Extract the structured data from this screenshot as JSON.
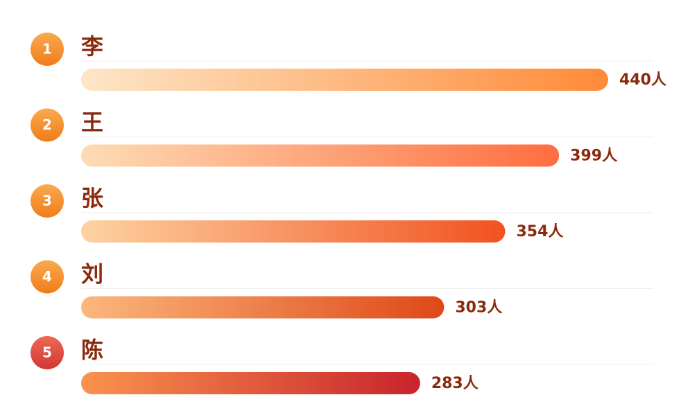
{
  "chart_data": {
    "type": "bar",
    "orientation": "horizontal",
    "ranks": [
      1,
      2,
      3,
      4,
      5
    ],
    "categories": [
      "李",
      "王",
      "张",
      "刘",
      "陈"
    ],
    "values": [
      440,
      399,
      354,
      303,
      283
    ],
    "value_labels": [
      "440人",
      "399人",
      "354人",
      "303人",
      "283人"
    ],
    "bar_gradients": [
      [
        "#fde6c8",
        "#ff8a38"
      ],
      [
        "#fddcb4",
        "#ff6d40"
      ],
      [
        "#fdd2a2",
        "#f25220"
      ],
      [
        "#fbb77c",
        "#df4818"
      ],
      [
        "#fa934e",
        "#c8242c"
      ]
    ],
    "badge_gradients": [
      [
        "#f9aa4e",
        "#f07c1c"
      ],
      [
        "#f9aa4e",
        "#f07c1c"
      ],
      [
        "#f9aa4e",
        "#f07c1c"
      ],
      [
        "#f9aa4e",
        "#f07c1c"
      ],
      [
        "#ec6a52",
        "#d43634"
      ]
    ],
    "text_color": "#8a2a0c"
  }
}
